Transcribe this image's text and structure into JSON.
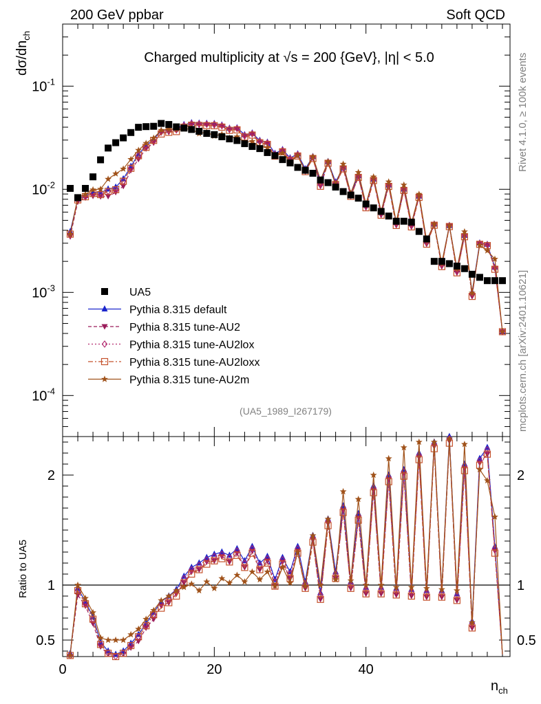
{
  "header": {
    "left": "200 GeV ppbar",
    "right": "Soft QCD"
  },
  "side_labels": {
    "rivet": "Rivet 4.1.0, ≥ 100k events",
    "mcplots": "mcplots.cern.ch [arXiv:2401.10621]"
  },
  "chart_data": {
    "type": "scatter",
    "title": "Charged multiplicity at √s = 200 {GeV}, |η| < 5.0",
    "analysis_id": "(UA5_1989_I267179)",
    "xlabel": "n_ch",
    "ylabel": "dσ/dn_ch",
    "ratio_ylabel": "Ratio to UA5",
    "xlim": [
      0,
      59
    ],
    "ylim": [
      4e-05,
      0.4
    ],
    "ratio_ylim": [
      0.35,
      2.35
    ],
    "xticks": [
      0,
      20,
      40
    ],
    "yticks": [
      0.0001,
      0.001,
      0.01,
      0.1
    ],
    "ytick_labels": [
      "10^-4",
      "10^-3",
      "10^-2",
      "10^-1"
    ],
    "ratio_yticks": [
      0.5,
      1,
      2
    ],
    "ratio_ytick_labels": [
      "0.5",
      "1",
      "2"
    ],
    "data": {
      "name": "UA5",
      "color": "#000000",
      "x": [
        1,
        2,
        3,
        4,
        5,
        6,
        7,
        8,
        9,
        10,
        11,
        12,
        13,
        14,
        15,
        16,
        17,
        18,
        19,
        20,
        21,
        22,
        23,
        24,
        25,
        26,
        27,
        28,
        29,
        30,
        31,
        32,
        33,
        34,
        35,
        36,
        37,
        38,
        39,
        40,
        41,
        42,
        43,
        44,
        45,
        46,
        47,
        48,
        49,
        50,
        51,
        52,
        53,
        54,
        55,
        56,
        57,
        58
      ],
      "y": [
        0.0102,
        0.0083,
        0.0102,
        0.0132,
        0.0193,
        0.0251,
        0.0283,
        0.0315,
        0.0355,
        0.0399,
        0.0405,
        0.0408,
        0.0435,
        0.0425,
        0.0403,
        0.0392,
        0.038,
        0.0365,
        0.0348,
        0.0339,
        0.0323,
        0.0308,
        0.0297,
        0.0277,
        0.026,
        0.0248,
        0.0227,
        0.0212,
        0.0194,
        0.018,
        0.0163,
        0.0153,
        0.0143,
        0.0123,
        0.0116,
        0.0105,
        0.0095,
        0.0088,
        0.0082,
        0.0072,
        0.0066,
        0.0061,
        0.0055,
        0.0049,
        0.0049,
        0.0048,
        0.0039,
        0.0033,
        0.002,
        0.002,
        0.0019,
        0.0018,
        0.0017,
        0.0015,
        0.0014,
        0.0013,
        0.0013,
        0.0013
      ]
    },
    "series": [
      {
        "name": "Pythia 8.315 default",
        "color": "#1a25cc",
        "marker": "triangle-up",
        "dash": "",
        "ratio_shift": 0.0
      },
      {
        "name": "Pythia 8.315 tune-AU2",
        "color": "#9b1c5a",
        "marker": "triangle-down",
        "dash": "5,3",
        "ratio_shift": -0.04
      },
      {
        "name": "Pythia 8.315 tune-AU2lox",
        "color": "#b2286e",
        "marker": "diamond",
        "dash": "2,3",
        "ratio_shift": -0.02
      },
      {
        "name": "Pythia 8.315 tune-AU2loxx",
        "color": "#c4502a",
        "marker": "square-open",
        "dash": "7,3,2,3",
        "ratio_shift": -0.06
      },
      {
        "name": "Pythia 8.315 tune-AU2m",
        "color": "#a0521a",
        "marker": "star",
        "dash": "",
        "ratio_shift": 0.0
      }
    ],
    "mc_ratio_default": [
      0.38,
      0.97,
      0.85,
      0.71,
      0.48,
      0.4,
      0.37,
      0.4,
      0.47,
      0.55,
      0.65,
      0.75,
      0.85,
      0.9,
      0.96,
      1.08,
      1.16,
      1.2,
      1.25,
      1.28,
      1.3,
      1.27,
      1.33,
      1.22,
      1.35,
      1.2,
      1.26,
      1.05,
      1.25,
      1.12,
      1.35,
      1.03,
      1.45,
      0.93,
      1.6,
      1.12,
      1.72,
      1.03,
      1.65,
      0.98,
      1.9,
      0.98,
      2.0,
      0.97,
      2.05,
      0.96,
      2.2,
      0.95,
      2.3,
      0.95,
      2.35,
      0.92,
      2.1,
      0.67,
      2.15,
      2.25,
      1.35,
      0.32
    ],
    "mc_ratio_au2m": [
      0.36,
      1.0,
      0.88,
      0.75,
      0.52,
      0.5,
      0.5,
      0.5,
      0.55,
      0.6,
      0.69,
      0.77,
      0.86,
      0.9,
      0.95,
      0.98,
      1.01,
      0.95,
      1.03,
      0.97,
      1.06,
      1.02,
      1.09,
      1.03,
      1.12,
      1.05,
      1.12,
      0.99,
      1.16,
      1.02,
      1.3,
      0.99,
      1.45,
      1.0,
      1.6,
      1.05,
      1.85,
      1.04,
      1.78,
      1.0,
      2.0,
      1.0,
      2.15,
      0.98,
      2.25,
      0.98,
      2.3,
      0.97,
      2.3,
      0.96,
      2.33,
      0.95,
      2.28,
      0.66,
      2.05,
      1.95,
      1.62,
      0.32
    ]
  },
  "legend": {
    "data_label": "UA5"
  }
}
